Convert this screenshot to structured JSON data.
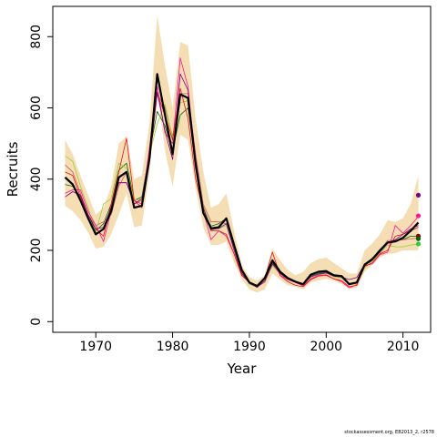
{
  "chart_data": {
    "type": "line",
    "xlabel": "Year",
    "ylabel": "Recruits",
    "xlim": [
      1964.4,
      2013.6
    ],
    "ylim": [
      -30,
      885
    ],
    "x_ticks": [
      1970,
      1980,
      1990,
      2000,
      2010
    ],
    "y_ticks": [
      0,
      200,
      400,
      600,
      800
    ],
    "grid": false,
    "x": [
      1966,
      1967,
      1968,
      1969,
      1970,
      1971,
      1972,
      1973,
      1974,
      1975,
      1976,
      1977,
      1978,
      1979,
      1980,
      1981,
      1982,
      1983,
      1984,
      1985,
      1986,
      1987,
      1988,
      1989,
      1990,
      1991,
      1992,
      1993,
      1994,
      1995,
      1996,
      1997,
      1998,
      1999,
      2000,
      2001,
      2002,
      2003,
      2004,
      2005,
      2006,
      2007,
      2008,
      2009,
      2010,
      2011,
      2012
    ],
    "band": {
      "color": "#f5deb3",
      "lower": [
        325,
        310,
        285,
        250,
        205,
        210,
        245,
        300,
        360,
        265,
        270,
        420,
        650,
        480,
        380,
        525,
        510,
        375,
        265,
        215,
        215,
        225,
        165,
        120,
        90,
        82,
        90,
        135,
        118,
        102,
        98,
        90,
        110,
        115,
        120,
        115,
        105,
        92,
        95,
        140,
        160,
        180,
        190,
        192,
        200,
        200,
        200
      ],
      "upper": [
        510,
        470,
        410,
        355,
        300,
        320,
        380,
        500,
        520,
        400,
        410,
        560,
        860,
        720,
        600,
        785,
        775,
        570,
        420,
        320,
        330,
        360,
        255,
        160,
        125,
        115,
        130,
        205,
        172,
        145,
        130,
        140,
        165,
        175,
        180,
        165,
        150,
        135,
        135,
        200,
        220,
        245,
        285,
        280,
        290,
        330,
        410
      ]
    },
    "series": [
      {
        "color": "#000000",
        "values": [
          405,
          385,
          340,
          290,
          245,
          260,
          310,
          405,
          420,
          320,
          325,
          460,
          695,
          580,
          470,
          638,
          628,
          440,
          305,
          262,
          265,
          290,
          215,
          145,
          110,
          100,
          122,
          172,
          140,
          122,
          112,
          105,
          132,
          140,
          142,
          130,
          128,
          105,
          110,
          160,
          175,
          200,
          222,
          225,
          235,
          255,
          278
        ]
      },
      {
        "color": "#006400",
        "values": [
          385,
          380,
          350,
          300,
          255,
          275,
          330,
          425,
          445,
          340,
          350,
          475,
          590,
          550,
          480,
          580,
          600,
          455,
          320,
          268,
          275,
          290,
          210,
          145,
          110,
          98,
          115,
          165,
          135,
          118,
          110,
          102,
          128,
          136,
          138,
          128,
          125,
          105,
          108,
          158,
          172,
          195,
          220,
          228,
          230,
          240,
          240
        ]
      },
      {
        "color": "#cd5c5c",
        "values": [
          440,
          420,
          360,
          300,
          270,
          280,
          300,
          380,
          420,
          330,
          340,
          470,
          640,
          600,
          520,
          640,
          640,
          470,
          330,
          280,
          280,
          275,
          205,
          140,
          105,
          98,
          110,
          160,
          140,
          122,
          112,
          106,
          130,
          138,
          142,
          132,
          126,
          108,
          110,
          155,
          178,
          200,
          228,
          228,
          230,
          232,
          235
        ]
      },
      {
        "color": "#9acd32",
        "values": [
          465,
          450,
          380,
          320,
          250,
          330,
          345,
          445,
          430,
          340,
          345,
          470,
          555,
          610,
          515,
          615,
          620,
          455,
          325,
          265,
          260,
          270,
          205,
          140,
          105,
          100,
          120,
          155,
          135,
          118,
          110,
          102,
          125,
          132,
          136,
          126,
          122,
          104,
          106,
          150,
          170,
          190,
          215,
          210,
          210,
          215,
          218
        ]
      },
      {
        "color": "#ff1493",
        "values": [
          360,
          370,
          370,
          310,
          270,
          225,
          310,
          390,
          390,
          340,
          330,
          490,
          660,
          530,
          500,
          740,
          660,
          440,
          310,
          230,
          255,
          240,
          190,
          130,
          110,
          98,
          125,
          175,
          130,
          118,
          110,
          100,
          120,
          130,
          132,
          120,
          112,
          95,
          104,
          158,
          162,
          188,
          195,
          270,
          248,
          270,
          295
        ]
      },
      {
        "color": "#e8111a",
        "values": [
          420,
          410,
          350,
          300,
          260,
          240,
          330,
          420,
          515,
          340,
          320,
          450,
          640,
          580,
          510,
          655,
          570,
          400,
          310,
          255,
          255,
          245,
          190,
          130,
          110,
          100,
          120,
          195,
          130,
          112,
          102,
          98,
          118,
          128,
          130,
          120,
          115,
          98,
          102,
          155,
          165,
          190,
          200,
          240,
          245,
          255,
          265
        ]
      },
      {
        "color": "#800080",
        "values": [
          350,
          365,
          355,
          300,
          260,
          265,
          320,
          390,
          390,
          330,
          345,
          470,
          645,
          535,
          455,
          695,
          650,
          455,
          320,
          258,
          262,
          275,
          200,
          135,
          108,
          96,
          115,
          162,
          135,
          120,
          112,
          104,
          126,
          133,
          137,
          128,
          125,
          118,
          124,
          162,
          178,
          195,
          220,
          230,
          245,
          260,
          270
        ]
      }
    ],
    "end_points": [
      {
        "color": "#800080",
        "x": 2012,
        "y": 355
      },
      {
        "color": "#ff1493",
        "x": 2012,
        "y": 297
      },
      {
        "color": "#8b0000",
        "x": 2012,
        "y": 240
      },
      {
        "color": "#006400",
        "x": 2012,
        "y": 233
      },
      {
        "color": "#32cd32",
        "x": 2012,
        "y": 218
      }
    ]
  },
  "footer": "stockassessment.org, EB2013_2, r2578"
}
